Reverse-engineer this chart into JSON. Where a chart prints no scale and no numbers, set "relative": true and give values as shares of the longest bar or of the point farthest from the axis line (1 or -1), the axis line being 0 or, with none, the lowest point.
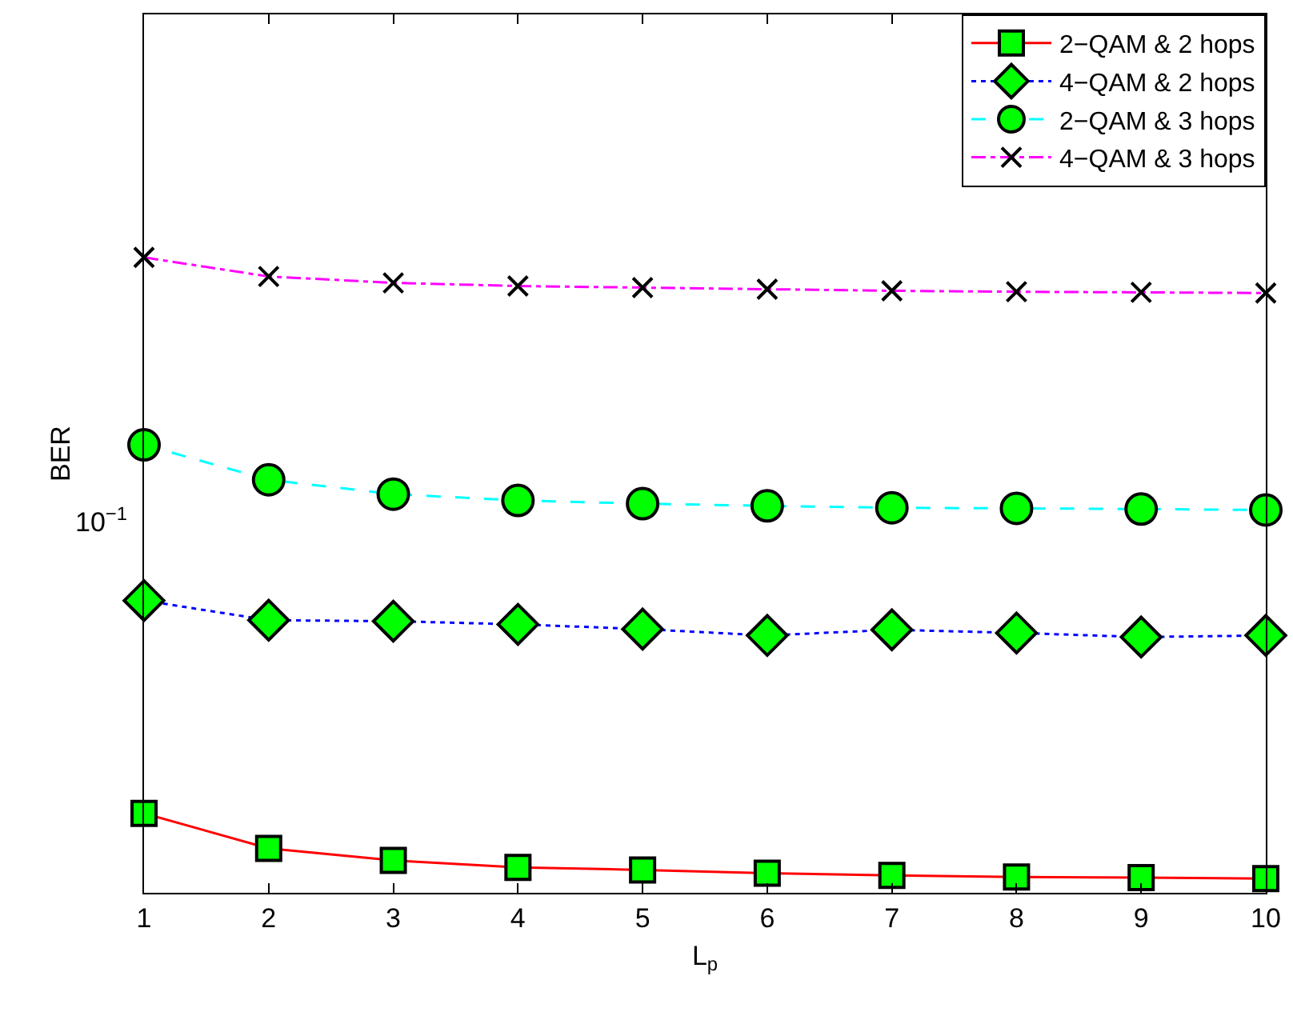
{
  "chart_data": {
    "type": "line",
    "xlabel": "L$_{p}$",
    "ylabel": "BER",
    "x": [
      1,
      2,
      3,
      4,
      5,
      6,
      7,
      8,
      9,
      10
    ],
    "xlim": [
      1,
      10
    ],
    "xticks": [
      1,
      2,
      3,
      4,
      5,
      6,
      7,
      8,
      9,
      10
    ],
    "relative": true,
    "annotations": [
      "10$^{−1}$"
    ],
    "legend": "top right",
    "series": [
      {
        "name": "2−QAM & 2 hops",
        "color": "#ff0000",
        "marker": "square",
        "line_style": "solid",
        "colors": [
          "#00ff00",
          "#00ff00",
          "#00ff00",
          "#00ff00",
          "#00ff00",
          "#00ff00",
          "#00ff00",
          "#00ff00",
          "#00ff00",
          "#00ff00"
        ],
        "values": [
          0.125,
          0.07,
          0.051,
          0.04,
          0.036,
          0.031,
          0.0275,
          0.025,
          0.024,
          0.0225
        ]
      },
      {
        "name": "4−QAM & 2 hops",
        "color": "#0000ff",
        "marker": "diamond",
        "line_style": "dotted",
        "colors": [
          "#00ff00",
          "#00ff00",
          "#00ff00",
          "#00ff00",
          "#00ff00",
          "#00ff00",
          "#00ff00",
          "#00ff00",
          "#00ff00",
          "#00ff00"
        ],
        "values": [
          0.46,
          0.429,
          0.4275,
          0.4225,
          0.415,
          0.405,
          0.414,
          0.409,
          0.4025,
          0.405
        ]
      },
      {
        "name": "2−QAM & 3 hops",
        "color": "#00ffff",
        "marker": "circle",
        "line_style": "dashed",
        "colors": [
          "#00ff00",
          "#00ff00",
          "#00ff00",
          "#00ff00",
          "#00ff00",
          "#00ff00",
          "#00ff00",
          "#00ff00",
          "#00ff00",
          "#00ff00"
        ],
        "values": [
          0.705,
          0.65,
          0.6275,
          0.6175,
          0.6125,
          0.609,
          0.606,
          0.605,
          0.604,
          0.6025
        ]
      },
      {
        "name": "4−QAM & 3 hops",
        "color": "#ff00ff",
        "marker": "cross",
        "line_style": "dashdot",
        "colors": [
          "#000000",
          "#000000",
          "#000000",
          "#000000",
          "#000000",
          "#000000",
          "#000000",
          "#000000",
          "#000000",
          "#000000"
        ],
        "values": [
          1,
          0.97,
          0.96,
          0.955,
          0.9525,
          0.95,
          0.9475,
          0.946,
          0.945,
          0.944
        ]
      }
    ]
  }
}
